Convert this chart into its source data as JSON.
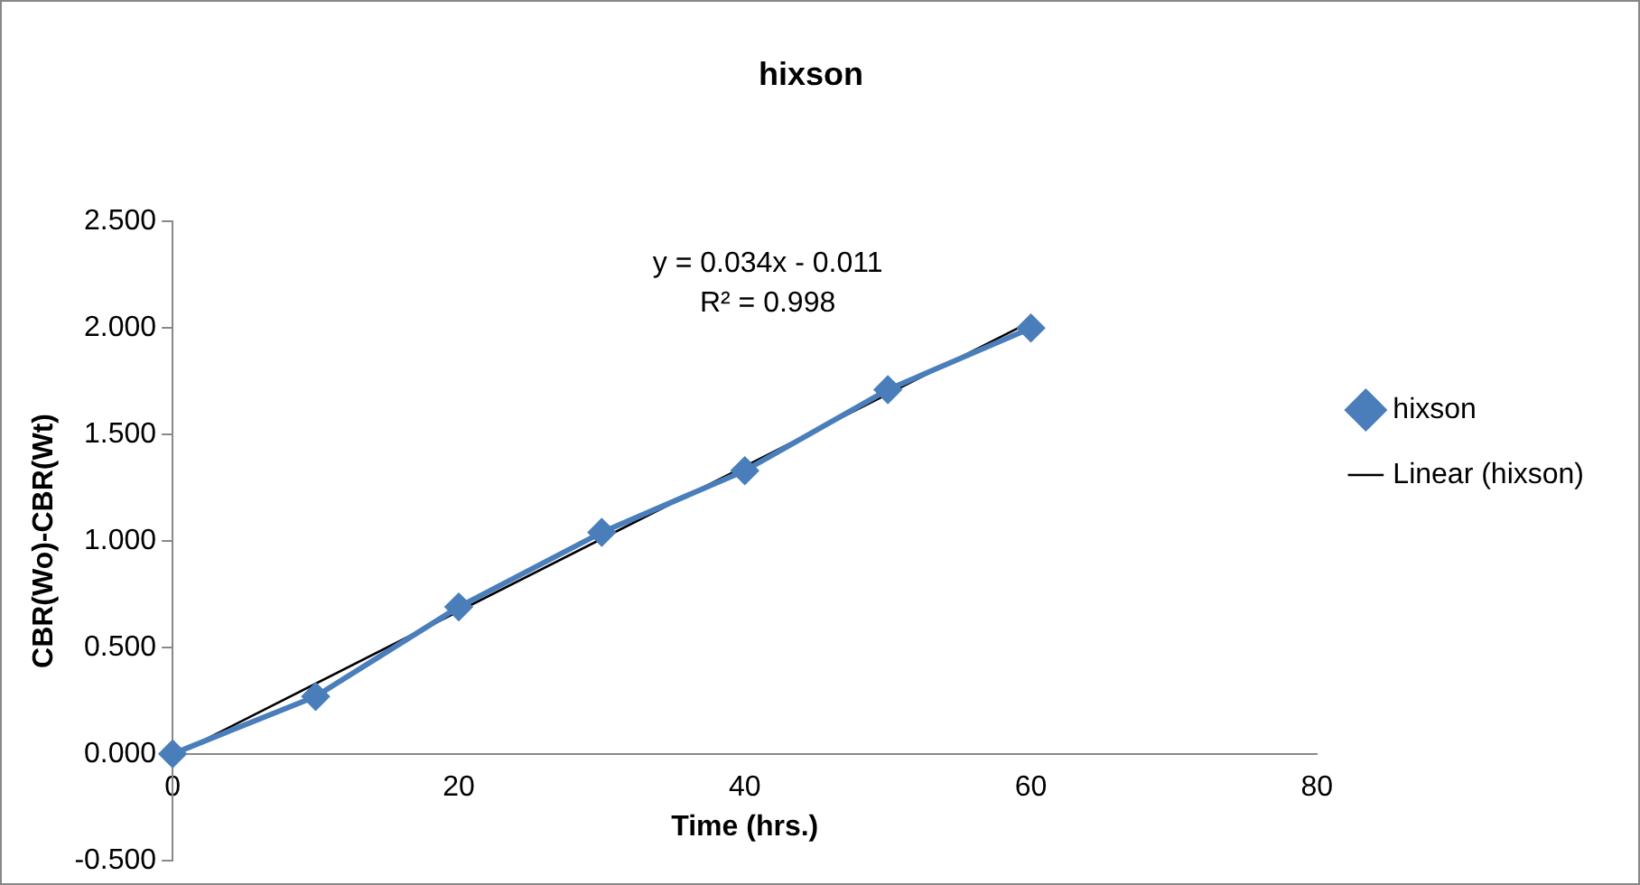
{
  "chart_data": {
    "type": "line",
    "title": "hixson",
    "xlabel": "Time (hrs.)",
    "ylabel": "CBR(Wo)-CBR(Wt)",
    "xlim": [
      0,
      80
    ],
    "xticks": [
      0,
      20,
      40,
      60,
      80
    ],
    "ylim": [
      -0.5,
      2.5
    ],
    "yticks": [
      {
        "value": -0.5,
        "label": "-0.500"
      },
      {
        "value": 0,
        "label": "0.000"
      },
      {
        "value": 0.5,
        "label": "0.500"
      },
      {
        "value": 1,
        "label": "1.000"
      },
      {
        "value": 1.5,
        "label": "1.500"
      },
      {
        "value": 2,
        "label": "2.000"
      },
      {
        "value": 2.5,
        "label": "2.500"
      }
    ],
    "grid": false,
    "legend": "right",
    "series": [
      {
        "name": "hixson",
        "marker": "diamond",
        "color": "#4a7ebb",
        "x": [
          0,
          10,
          20,
          30,
          40,
          50,
          60
        ],
        "values": [
          0,
          0.27,
          0.69,
          1.04,
          1.33,
          1.71,
          2.0
        ]
      },
      {
        "name": "Linear (hixson)",
        "marker": "none",
        "color": "#000000",
        "x": [
          0,
          60
        ],
        "values": [
          -0.01,
          2.03
        ]
      }
    ],
    "annotations": [
      "y = 0.034x - 0.011",
      "R² = 0.998"
    ]
  }
}
